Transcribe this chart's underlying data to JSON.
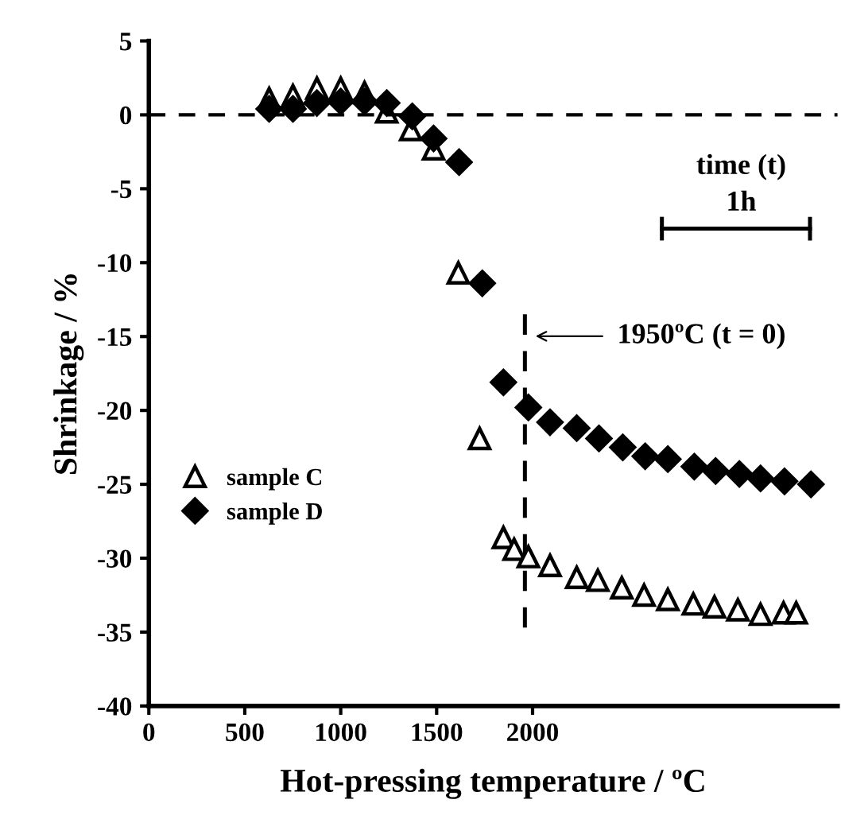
{
  "chart_data": {
    "type": "scatter",
    "xlabel": "Hot-pressing temperature / ºC",
    "ylabel": "Shrinkage / %",
    "xlim": [
      0,
      3590
    ],
    "xticks": [
      0,
      500,
      1000,
      1500,
      2000
    ],
    "ylim": [
      -40,
      5
    ],
    "yticks": [
      5,
      0,
      -5,
      -10,
      -15,
      -20,
      -25,
      -30,
      -35,
      -40
    ],
    "grid": false,
    "legend": "bottom left",
    "series": [
      {
        "name": "sample C",
        "color": "#000000",
        "marker": "triangle",
        "x": [
          627,
          751,
          876,
          1000,
          1124,
          1240,
          1365,
          1484,
          1613,
          1724,
          1848,
          1904,
          1978,
          2091,
          2230,
          2340,
          2465,
          2581,
          2705,
          2838,
          2948,
          3070,
          3188,
          3308,
          3374
        ],
        "values": [
          1.1,
          1.3,
          1.8,
          1.8,
          1.5,
          0.2,
          -1.0,
          -2.3,
          -10.7,
          -21.9,
          -28.6,
          -29.4,
          -29.9,
          -30.5,
          -31.3,
          -31.5,
          -32.0,
          -32.5,
          -32.8,
          -33.1,
          -33.3,
          -33.5,
          -33.8,
          -33.7,
          -33.7
        ]
      },
      {
        "name": "sample D",
        "color": "#000000",
        "marker": "diamond",
        "x": [
          627,
          751,
          876,
          1000,
          1124,
          1240,
          1373,
          1484,
          1617,
          1738,
          1848,
          1978,
          2091,
          2230,
          2346,
          2470,
          2587,
          2705,
          2843,
          2954,
          3078,
          3188,
          3313,
          3451
        ],
        "values": [
          0.4,
          0.4,
          0.8,
          0.9,
          0.9,
          0.8,
          -0.1,
          -1.6,
          -3.2,
          -11.4,
          -18.1,
          -19.8,
          -20.8,
          -21.2,
          -21.9,
          -22.5,
          -23.1,
          -23.3,
          -23.8,
          -24.1,
          -24.3,
          -24.6,
          -24.8,
          -25.0
        ]
      },
      {
        "type": "line",
        "color": "#000000",
        "line_style": "dashed",
        "marker": "none",
        "x": [
          1960,
          1960
        ],
        "values": [
          -13.5,
          -34.7
        ]
      },
      {
        "type": "line",
        "color": "#000000",
        "line_style": "solid",
        "marker": "none",
        "x": [
          2674,
          3446
        ],
        "values": [
          -7.7,
          -7.7
        ],
        "errors": [
          0.8,
          0.8
        ]
      }
    ],
    "ref_lines": [
      {
        "axis": "y",
        "value": 0,
        "label": null,
        "color": "#000000",
        "line_style": "dashed"
      }
    ],
    "annotations": [
      "1950ºC (t = 0)",
      "time (t)",
      "1h"
    ]
  }
}
